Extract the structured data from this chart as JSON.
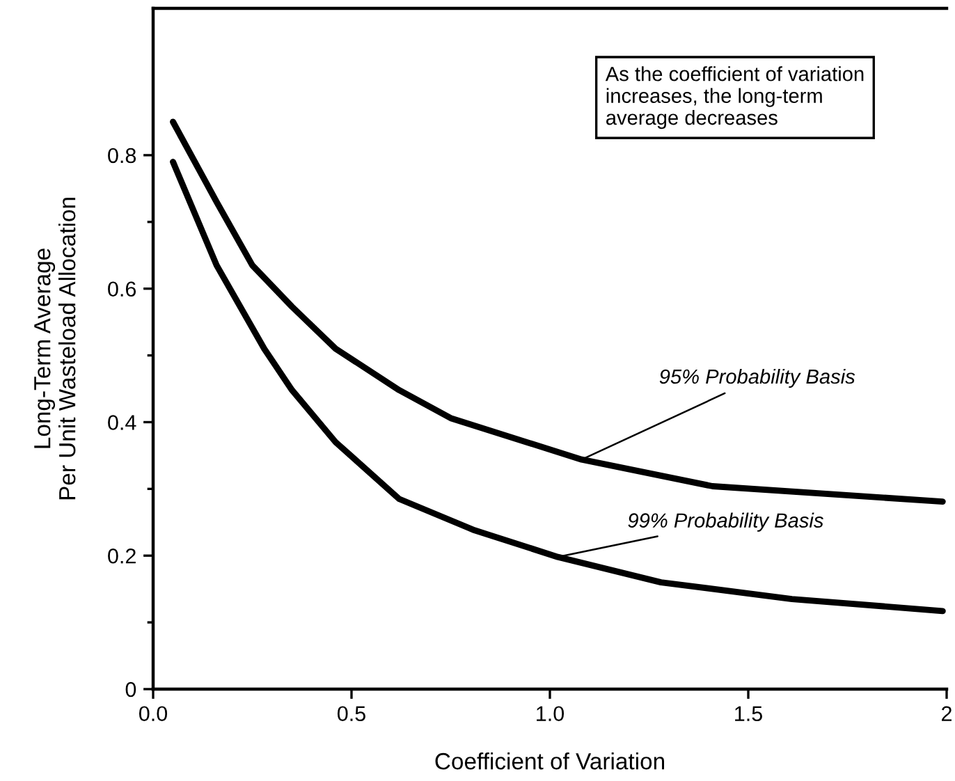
{
  "chart_data": {
    "type": "line",
    "xlabel": "Coefficient of Variation",
    "ylabel": "Long-Term Average\nPer Unit Wasteload Allocation",
    "xlim": [
      0,
      2.0
    ],
    "ylim": [
      0,
      1.02
    ],
    "xticks": [
      {
        "value": 0,
        "label": "0.0"
      },
      0.5,
      {
        "value": 1.0,
        "label": "1.0"
      },
      1.5,
      {
        "value": 2.0,
        "label": "2"
      }
    ],
    "yticks": [
      0,
      {
        "value": 0.1,
        "label": null
      },
      {
        "value": 0.2,
        "label": "0.2"
      },
      {
        "value": 0.3,
        "label": null
      },
      0.4,
      {
        "value": 0.5,
        "label": null
      },
      0.6,
      {
        "value": 0.7,
        "label": null
      },
      0.8
    ],
    "grid": false,
    "marker": "none",
    "line_style": "solid",
    "series": [
      {
        "color": "#000000",
        "x": [
          0.05,
          0.16,
          0.25,
          0.35,
          0.46,
          0.62,
          0.75,
          1.08,
          1.41,
          1.99
        ],
        "values": [
          0.85,
          0.73,
          0.635,
          0.573,
          0.51,
          0.448,
          0.406,
          0.344,
          0.304,
          0.281
        ]
      },
      {
        "color": "#000000",
        "x": [
          0.05,
          0.16,
          0.28,
          0.35,
          0.46,
          0.62,
          0.81,
          1.02,
          1.28,
          1.61,
          1.99
        ],
        "values": [
          0.79,
          0.635,
          0.51,
          0.448,
          0.37,
          0.285,
          0.238,
          0.198,
          0.16,
          0.135,
          0.117
        ]
      }
    ],
    "annotations": [
      "As the coefficient of variation\nincreases, the long-term\naverage decreases",
      {
        "text": "95% Probability Basis",
        "x": 1.08,
        "y": 0.344
      },
      {
        "text": "99% Probability Basis",
        "x": 1.02,
        "y": 0.198
      }
    ]
  }
}
